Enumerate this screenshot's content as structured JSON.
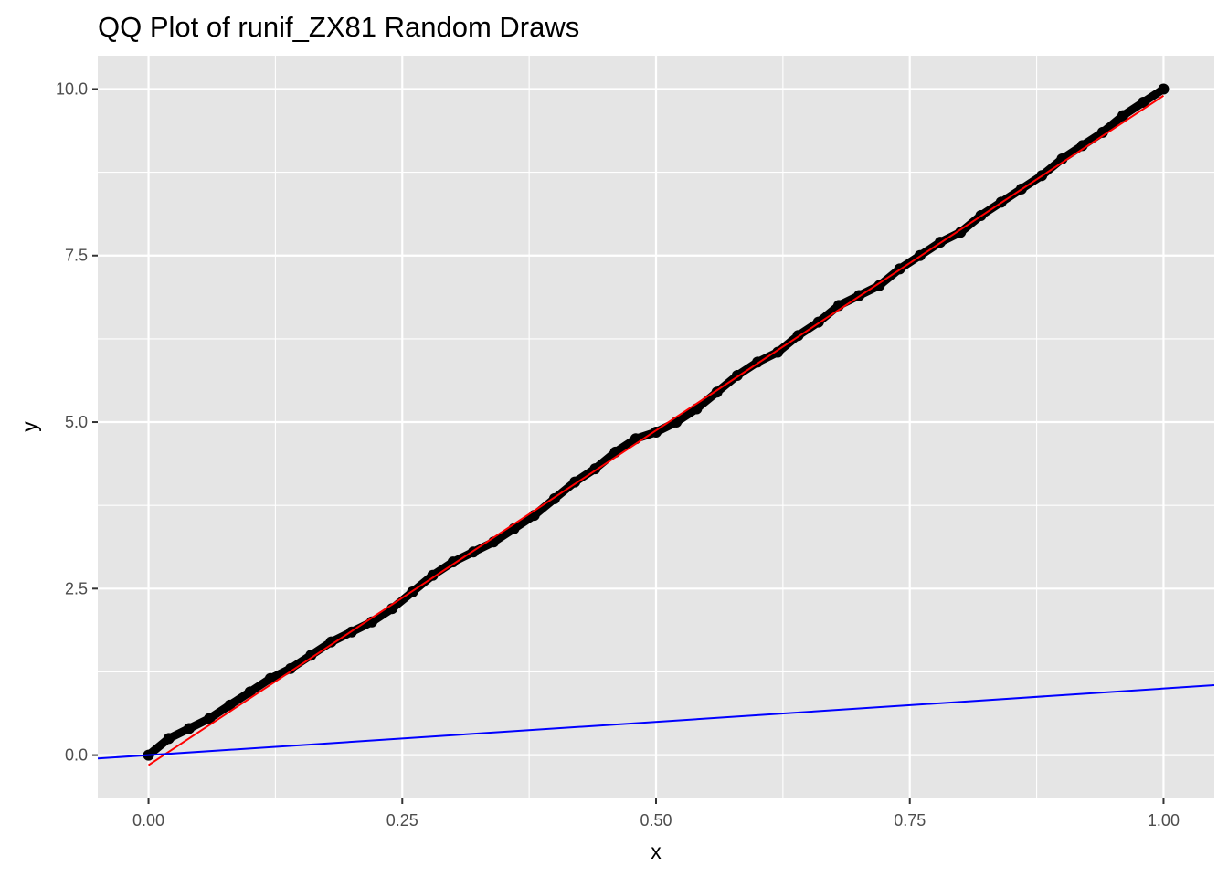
{
  "chart_data": {
    "type": "scatter",
    "title": "QQ Plot of runif_ZX81 Random Draws",
    "xlabel": "x",
    "ylabel": "y",
    "xlim": [
      -0.05,
      1.05
    ],
    "ylim": [
      -0.65,
      10.5
    ],
    "x_ticks": [
      0.0,
      0.25,
      0.5,
      0.75,
      1.0
    ],
    "x_tick_labels": [
      "0.00",
      "0.25",
      "0.50",
      "0.75",
      "1.00"
    ],
    "y_ticks": [
      0.0,
      2.5,
      5.0,
      7.5,
      10.0
    ],
    "y_tick_labels": [
      "0.0",
      "2.5",
      "5.0",
      "7.5",
      "10.0"
    ],
    "grid": true,
    "legend": "none",
    "colors": {
      "panel_background": "#e5e5e5",
      "grid": "#ffffff",
      "points": "#000000",
      "fit_line": "#ff0000",
      "reference_line": "#0000ff",
      "tick_text": "#4d4d4d"
    },
    "series": [
      {
        "kind": "points",
        "color": "#000000",
        "x": [
          0.0,
          0.02,
          0.04,
          0.06,
          0.08,
          0.1,
          0.12,
          0.14,
          0.16,
          0.18,
          0.2,
          0.22,
          0.24,
          0.26,
          0.28,
          0.3,
          0.32,
          0.34,
          0.36,
          0.38,
          0.4,
          0.42,
          0.44,
          0.46,
          0.48,
          0.5,
          0.52,
          0.54,
          0.56,
          0.58,
          0.6,
          0.62,
          0.64,
          0.66,
          0.68,
          0.7,
          0.72,
          0.74,
          0.76,
          0.78,
          0.8,
          0.82,
          0.84,
          0.86,
          0.88,
          0.9,
          0.92,
          0.94,
          0.96,
          0.98,
          1.0
        ],
        "y": [
          0.0,
          0.25,
          0.4,
          0.55,
          0.75,
          0.95,
          1.15,
          1.3,
          1.5,
          1.7,
          1.85,
          2.0,
          2.2,
          2.45,
          2.7,
          2.9,
          3.05,
          3.2,
          3.4,
          3.6,
          3.85,
          4.1,
          4.3,
          4.55,
          4.75,
          4.85,
          5.0,
          5.2,
          5.45,
          5.7,
          5.9,
          6.05,
          6.3,
          6.5,
          6.75,
          6.9,
          7.05,
          7.3,
          7.5,
          7.7,
          7.85,
          8.1,
          8.3,
          8.5,
          8.7,
          8.95,
          9.15,
          9.35,
          9.6,
          9.8,
          10.0
        ]
      },
      {
        "kind": "line",
        "color": "#ff0000",
        "x": [
          0.0,
          1.0
        ],
        "y": [
          -0.15,
          9.9
        ]
      },
      {
        "kind": "line",
        "color": "#0000ff",
        "x": [
          -0.05,
          1.05
        ],
        "y": [
          -0.05,
          1.05
        ]
      }
    ]
  }
}
